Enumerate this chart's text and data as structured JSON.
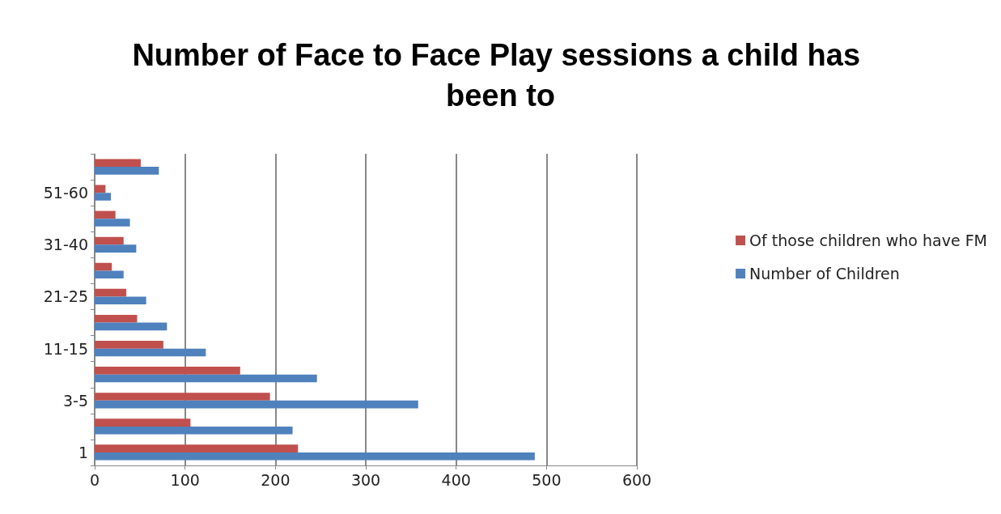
{
  "chart_data": {
    "type": "bar",
    "orientation": "horizontal",
    "title": "Number of Face to Face Play sessions a child has been to",
    "categories": [
      null,
      "51-60",
      null,
      "31-40",
      null,
      "21-25",
      null,
      "11-15",
      null,
      "3-5",
      null,
      "1"
    ],
    "series": [
      {
        "name": "Of those children who have FM",
        "color": "#c0504d",
        "values": [
          51,
          12,
          23,
          32,
          19,
          35,
          47,
          76,
          161,
          194,
          106,
          225
        ]
      },
      {
        "name": "Number of Children",
        "color": "#4f81bd",
        "values": [
          71,
          18,
          39,
          46,
          32,
          57,
          80,
          123,
          246,
          358,
          219,
          487
        ]
      }
    ],
    "xlim": [
      0,
      600
    ],
    "xticks": [
      0,
      100,
      200,
      300,
      400,
      500,
      600
    ],
    "grid": "x",
    "legend": "right"
  }
}
